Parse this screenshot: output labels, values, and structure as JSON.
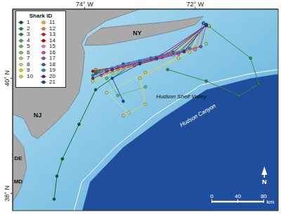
{
  "chart_data": {
    "type": "scatter",
    "legend_title": "Shark ID",
    "legend": "top-left",
    "marker": "circle",
    "xlim": [
      -75.3,
      -70.5
    ],
    "ylim": [
      37.7,
      41.2
    ],
    "xticks": [
      {
        "value": -74,
        "label": "74° W"
      },
      {
        "value": -72,
        "label": "72° W"
      }
    ],
    "yticks": [
      {
        "value": 38,
        "label": "38° N"
      },
      {
        "value": 40,
        "label": "40° N"
      }
    ],
    "annotations": [
      "NY",
      "NJ",
      "DE",
      "MD",
      "Hudson Shelf Valley",
      "Hudson Canyon",
      "N"
    ],
    "scale_bar": {
      "ticks": [
        0,
        40,
        80
      ],
      "unit": "km"
    },
    "series": [
      {
        "name": "1",
        "color": "#0b5d1e",
        "values": [
          [
            -71.8,
            40.92
          ],
          [
            -72.3,
            40.45
          ],
          [
            -73.2,
            40.2
          ],
          [
            -73.8,
            39.8
          ],
          [
            -74.1,
            39.2
          ],
          [
            -74.4,
            38.6
          ],
          [
            -74.5,
            38.3
          ],
          [
            -74.55,
            37.9
          ]
        ]
      },
      {
        "name": "2",
        "color": "#1a9850",
        "values": [
          [
            -71.85,
            40.95
          ],
          [
            -72.0,
            40.5
          ],
          [
            -72.8,
            40.35
          ],
          [
            -73.5,
            40.15
          ],
          [
            -73.85,
            40.05
          ]
        ]
      },
      {
        "name": "3",
        "color": "#2e8b3a",
        "values": [
          [
            -71.75,
            40.9
          ],
          [
            -71.0,
            40.35
          ],
          [
            -70.85,
            39.9
          ],
          [
            -71.2,
            39.7
          ],
          [
            -71.8,
            39.95
          ],
          [
            -72.5,
            40.15
          ]
        ]
      },
      {
        "name": "4",
        "color": "#4daf4a",
        "values": [
          [
            -71.8,
            40.93
          ],
          [
            -72.4,
            40.45
          ],
          [
            -73.2,
            40.25
          ],
          [
            -73.8,
            40.1
          ]
        ]
      },
      {
        "name": "5",
        "color": "#66bd63",
        "values": [
          [
            -71.85,
            40.96
          ],
          [
            -71.9,
            40.55
          ],
          [
            -72.6,
            40.38
          ],
          [
            -73.1,
            40.25
          ],
          [
            -73.6,
            40.0
          ],
          [
            -73.4,
            39.7
          ],
          [
            -72.9,
            39.85
          ]
        ]
      },
      {
        "name": "6",
        "color": "#8cc63f",
        "values": [
          [
            -71.8,
            40.92
          ],
          [
            -72.2,
            40.48
          ],
          [
            -72.9,
            40.3
          ],
          [
            -73.4,
            40.15
          ]
        ]
      },
      {
        "name": "7",
        "color": "#a6d96a",
        "values": [
          [
            -71.75,
            40.91
          ],
          [
            -71.8,
            40.6
          ],
          [
            -72.6,
            40.4
          ],
          [
            -73.3,
            40.22
          ],
          [
            -73.7,
            40.12
          ]
        ]
      },
      {
        "name": "8",
        "color": "#c7e36b",
        "values": [
          [
            -71.85,
            40.95
          ],
          [
            -72.1,
            40.45
          ],
          [
            -72.9,
            40.1
          ],
          [
            -73.6,
            39.75
          ],
          [
            -73.2,
            39.4
          ]
        ]
      },
      {
        "name": "9",
        "color": "#e6e600",
        "values": [
          [
            -71.8,
            40.93
          ],
          [
            -72.4,
            40.4
          ],
          [
            -73.5,
            40.1
          ],
          [
            -73.85,
            39.95
          ]
        ]
      },
      {
        "name": "10",
        "color": "#f2d13d",
        "values": [
          [
            -71.8,
            40.92
          ],
          [
            -72.3,
            40.35
          ],
          [
            -73.0,
            40.0
          ],
          [
            -72.9,
            39.55
          ],
          [
            -73.3,
            39.35
          ]
        ]
      },
      {
        "name": "11",
        "color": "#fdb813",
        "values": [
          [
            -71.85,
            40.96
          ],
          [
            -72.0,
            40.52
          ],
          [
            -72.7,
            40.33
          ],
          [
            -73.4,
            40.18
          ],
          [
            -73.75,
            40.1
          ]
        ]
      },
      {
        "name": "12",
        "color": "#f58220",
        "values": [
          [
            -71.8,
            40.92
          ],
          [
            -72.5,
            40.42
          ],
          [
            -73.3,
            40.2
          ],
          [
            -73.8,
            40.15
          ]
        ]
      },
      {
        "name": "13",
        "color": "#e41a1c",
        "values": [
          [
            -71.8,
            40.93
          ],
          [
            -72.2,
            40.47
          ],
          [
            -73.0,
            40.28
          ],
          [
            -73.6,
            40.12
          ]
        ]
      },
      {
        "name": "14",
        "color": "#a50f15",
        "values": [
          [
            -71.8,
            40.92
          ],
          [
            -72.6,
            40.36
          ],
          [
            -73.4,
            40.2
          ],
          [
            -73.85,
            40.12
          ]
        ]
      },
      {
        "name": "15",
        "color": "#f781bf",
        "values": [
          [
            -71.85,
            40.95
          ],
          [
            -72.0,
            40.5
          ],
          [
            -72.9,
            40.3
          ],
          [
            -73.5,
            40.18
          ]
        ]
      },
      {
        "name": "16",
        "color": "#e040c8",
        "values": [
          [
            -71.8,
            40.92
          ],
          [
            -72.3,
            40.42
          ],
          [
            -73.1,
            40.22
          ],
          [
            -73.7,
            40.05
          ]
        ]
      },
      {
        "name": "17",
        "color": "#984ea3",
        "values": [
          [
            -71.8,
            40.93
          ],
          [
            -71.9,
            40.55
          ],
          [
            -72.8,
            40.34
          ],
          [
            -73.6,
            40.15
          ]
        ]
      },
      {
        "name": "18",
        "color": "#3f51b5",
        "values": [
          [
            -71.8,
            40.92
          ],
          [
            -72.4,
            40.45
          ],
          [
            -73.3,
            40.25
          ],
          [
            -73.8,
            40.08
          ]
        ]
      },
      {
        "name": "19",
        "color": "#1e88e5",
        "values": [
          [
            -71.85,
            40.96
          ],
          [
            -72.1,
            40.52
          ],
          [
            -73.0,
            40.3
          ],
          [
            -73.75,
            40.12
          ]
        ]
      },
      {
        "name": "20",
        "color": "#6a1b9a",
        "values": [
          [
            -71.8,
            40.92
          ],
          [
            -72.7,
            40.35
          ],
          [
            -73.5,
            40.15
          ],
          [
            -73.85,
            40.0
          ]
        ]
      },
      {
        "name": "21",
        "color": "#0d47a1",
        "values": [
          [
            -71.8,
            40.93
          ],
          [
            -72.2,
            40.46
          ],
          [
            -73.0,
            40.25
          ],
          [
            -73.5,
            40.0
          ],
          [
            -73.3,
            39.6
          ]
        ]
      }
    ]
  }
}
